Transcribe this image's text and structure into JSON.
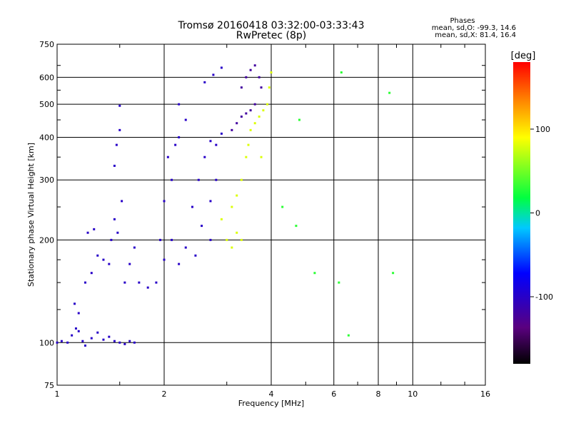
{
  "chart_data": {
    "type": "scatter",
    "title": "Tromsø 20160418 03:32:00-03:33:43",
    "subtitle": "RwPretec (8p)",
    "xlabel": "Frequency [MHz]",
    "ylabel": "Stationary phase Virtual Height [km]",
    "x_scale": "log",
    "y_scale": "log",
    "xlim": [
      1,
      16
    ],
    "ylim": [
      75,
      750
    ],
    "x_ticks": [
      1,
      2,
      4,
      6,
      8,
      10,
      16
    ],
    "x_tick_labels": [
      "1",
      "2",
      "4",
      "6",
      "8",
      "10",
      "16"
    ],
    "y_ticks": [
      75,
      100,
      200,
      300,
      400,
      500,
      600,
      750
    ],
    "y_tick_labels": [
      "75",
      "100",
      "200",
      "300",
      "400",
      "500",
      "600",
      "750"
    ],
    "grid": true,
    "stats": {
      "heading": "Phases",
      "line_o": "mean, sd,O: -99.3, 14.6",
      "line_x": "mean, sd,X: 81.4, 16.4"
    },
    "colorbar": {
      "label": "[deg]",
      "min": -180,
      "max": 180,
      "ticks": [
        100,
        0,
        -100
      ],
      "tick_labels": [
        "100",
        "0",
        "-100"
      ]
    },
    "series": [
      {
        "role": "O-mode traces",
        "phase_deg": -100,
        "points": [
          [
            1.0,
            100
          ],
          [
            1.03,
            101
          ],
          [
            1.07,
            100
          ],
          [
            1.1,
            105
          ],
          [
            1.13,
            110
          ],
          [
            1.15,
            108
          ],
          [
            1.18,
            101
          ],
          [
            1.2,
            98
          ],
          [
            1.25,
            103
          ],
          [
            1.3,
            107
          ],
          [
            1.35,
            102
          ],
          [
            1.4,
            104
          ],
          [
            1.45,
            101
          ],
          [
            1.5,
            100
          ],
          [
            1.55,
            99
          ],
          [
            1.6,
            101
          ],
          [
            1.65,
            100
          ],
          [
            1.12,
            130
          ],
          [
            1.15,
            122
          ],
          [
            1.2,
            150
          ],
          [
            1.25,
            160
          ],
          [
            1.22,
            210
          ],
          [
            1.27,
            215
          ],
          [
            1.3,
            180
          ],
          [
            1.35,
            175
          ],
          [
            1.4,
            170
          ],
          [
            1.42,
            200
          ],
          [
            1.45,
            230
          ],
          [
            1.48,
            210
          ],
          [
            1.52,
            260
          ],
          [
            1.45,
            330
          ],
          [
            1.47,
            380
          ],
          [
            1.5,
            420
          ],
          [
            1.5,
            495
          ],
          [
            1.55,
            150
          ],
          [
            1.6,
            170
          ],
          [
            1.65,
            190
          ],
          [
            1.7,
            150
          ],
          [
            1.8,
            145
          ],
          [
            1.9,
            150
          ],
          [
            1.95,
            200
          ],
          [
            2.0,
            260
          ],
          [
            2.1,
            300
          ],
          [
            2.05,
            350
          ],
          [
            2.2,
            400
          ],
          [
            2.15,
            380
          ],
          [
            2.1,
            200
          ],
          [
            2.0,
            175
          ],
          [
            2.2,
            170
          ],
          [
            2.3,
            190
          ],
          [
            2.4,
            250
          ],
          [
            2.5,
            300
          ],
          [
            2.6,
            350
          ],
          [
            2.55,
            220
          ],
          [
            2.45,
            180
          ],
          [
            2.7,
            200
          ],
          [
            2.7,
            260
          ],
          [
            2.8,
            300
          ],
          [
            2.7,
            390
          ],
          [
            2.8,
            380
          ],
          [
            2.9,
            410
          ],
          [
            2.6,
            580
          ],
          [
            2.75,
            610
          ],
          [
            2.9,
            640
          ],
          [
            2.3,
            450
          ],
          [
            2.2,
            500
          ]
        ]
      },
      {
        "role": "O-mode high layer",
        "phase_deg": -120,
        "points": [
          [
            3.1,
            420
          ],
          [
            3.2,
            440
          ],
          [
            3.3,
            460
          ],
          [
            3.4,
            470
          ],
          [
            3.5,
            480
          ],
          [
            3.6,
            500
          ],
          [
            3.3,
            560
          ],
          [
            3.4,
            600
          ],
          [
            3.5,
            630
          ],
          [
            3.6,
            650
          ],
          [
            3.7,
            600
          ],
          [
            3.75,
            560
          ]
        ]
      },
      {
        "role": "X-mode traces",
        "phase_deg": 80,
        "points": [
          [
            2.9,
            230
          ],
          [
            3.0,
            200
          ],
          [
            3.1,
            190
          ],
          [
            3.2,
            210
          ],
          [
            3.3,
            200
          ],
          [
            3.1,
            250
          ],
          [
            3.2,
            270
          ],
          [
            3.3,
            300
          ],
          [
            3.4,
            350
          ],
          [
            3.45,
            380
          ],
          [
            3.5,
            420
          ],
          [
            3.6,
            440
          ],
          [
            3.7,
            460
          ],
          [
            3.8,
            480
          ],
          [
            3.9,
            500
          ],
          [
            3.95,
            560
          ],
          [
            4.0,
            620
          ],
          [
            3.75,
            350
          ]
        ]
      },
      {
        "role": "scattered",
        "phase_deg": 30,
        "points": [
          [
            4.3,
            250
          ],
          [
            4.7,
            220
          ],
          [
            5.3,
            160
          ],
          [
            6.2,
            150
          ],
          [
            6.6,
            105
          ],
          [
            8.6,
            540
          ],
          [
            8.8,
            160
          ],
          [
            6.3,
            620
          ],
          [
            4.8,
            450
          ]
        ]
      }
    ]
  }
}
